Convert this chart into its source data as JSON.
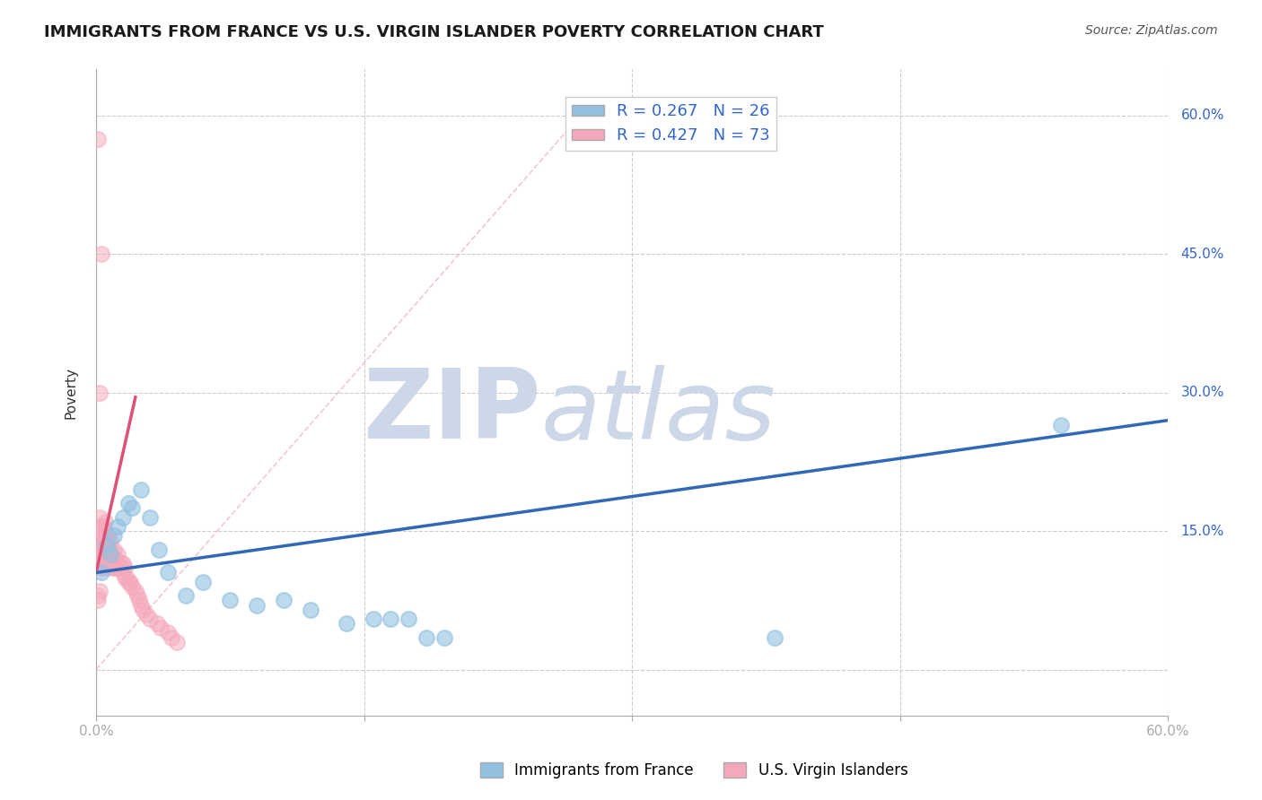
{
  "title": "IMMIGRANTS FROM FRANCE VS U.S. VIRGIN ISLANDER POVERTY CORRELATION CHART",
  "source": "Source: ZipAtlas.com",
  "ylabel": "Poverty",
  "xlim": [
    0.0,
    0.6
  ],
  "ylim": [
    -0.05,
    0.65
  ],
  "yticks": [
    0.0,
    0.15,
    0.3,
    0.45,
    0.6
  ],
  "ytick_labels": [
    "",
    "15.0%",
    "30.0%",
    "45.0%",
    "60.0%"
  ],
  "xticks": [
    0.0,
    0.15,
    0.3,
    0.45,
    0.6
  ],
  "xtick_labels": [
    "0.0%",
    "",
    "",
    "",
    "60.0%"
  ],
  "blue_R": 0.267,
  "blue_N": 26,
  "pink_R": 0.427,
  "pink_N": 73,
  "legend_label_blue": "Immigrants from France",
  "legend_label_pink": "U.S. Virgin Islanders",
  "blue_color": "#92c0e0",
  "pink_color": "#f5a8bb",
  "trendline_blue_color": "#3068b8",
  "trendline_pink_color": "#e05075",
  "ref_line_color": "#f0b8c8",
  "background_color": "#ffffff",
  "grid_color": "#cccccc",
  "watermark_color": "#ccd8e8",
  "title_fontsize": 13,
  "axis_label_fontsize": 11,
  "tick_label_fontsize": 11,
  "legend_fontsize": 13,
  "source_fontsize": 10,
  "blue_x": [
    0.003,
    0.006,
    0.008,
    0.01,
    0.012,
    0.015,
    0.018,
    0.02,
    0.025,
    0.03,
    0.035,
    0.04,
    0.05,
    0.06,
    0.075,
    0.09,
    0.105,
    0.12,
    0.14,
    0.155,
    0.165,
    0.175,
    0.185,
    0.195,
    0.38,
    0.54
  ],
  "blue_y": [
    0.105,
    0.135,
    0.125,
    0.145,
    0.155,
    0.165,
    0.18,
    0.175,
    0.195,
    0.165,
    0.13,
    0.105,
    0.08,
    0.095,
    0.075,
    0.07,
    0.075,
    0.065,
    0.05,
    0.055,
    0.055,
    0.055,
    0.035,
    0.035,
    0.035,
    0.265
  ],
  "pink_x": [
    0.001,
    0.001,
    0.001,
    0.002,
    0.002,
    0.002,
    0.002,
    0.002,
    0.003,
    0.003,
    0.003,
    0.003,
    0.003,
    0.004,
    0.004,
    0.004,
    0.004,
    0.004,
    0.005,
    0.005,
    0.005,
    0.005,
    0.005,
    0.005,
    0.006,
    0.006,
    0.006,
    0.006,
    0.007,
    0.007,
    0.007,
    0.007,
    0.008,
    0.008,
    0.008,
    0.008,
    0.009,
    0.009,
    0.01,
    0.01,
    0.01,
    0.011,
    0.011,
    0.012,
    0.012,
    0.013,
    0.014,
    0.015,
    0.015,
    0.016,
    0.016,
    0.017,
    0.018,
    0.019,
    0.02,
    0.022,
    0.023,
    0.024,
    0.025,
    0.026,
    0.028,
    0.03,
    0.034,
    0.036,
    0.04,
    0.042,
    0.045,
    0.002,
    0.003,
    0.001,
    0.001,
    0.002,
    0.001
  ],
  "pink_y": [
    0.125,
    0.145,
    0.135,
    0.12,
    0.13,
    0.14,
    0.155,
    0.165,
    0.11,
    0.12,
    0.13,
    0.14,
    0.155,
    0.115,
    0.125,
    0.135,
    0.145,
    0.155,
    0.11,
    0.12,
    0.13,
    0.14,
    0.15,
    0.16,
    0.115,
    0.125,
    0.135,
    0.145,
    0.115,
    0.12,
    0.13,
    0.14,
    0.115,
    0.12,
    0.13,
    0.14,
    0.11,
    0.12,
    0.11,
    0.12,
    0.13,
    0.11,
    0.12,
    0.115,
    0.125,
    0.11,
    0.115,
    0.105,
    0.115,
    0.1,
    0.11,
    0.1,
    0.095,
    0.095,
    0.09,
    0.085,
    0.08,
    0.075,
    0.07,
    0.065,
    0.06,
    0.055,
    0.05,
    0.045,
    0.04,
    0.035,
    0.03,
    0.3,
    0.45,
    0.575,
    0.08,
    0.085,
    0.075
  ],
  "blue_trend_x0": 0.0,
  "blue_trend_y0": 0.105,
  "blue_trend_x1": 0.6,
  "blue_trend_y1": 0.27,
  "pink_trend_x0": 0.0,
  "pink_trend_y0": 0.105,
  "pink_trend_x1": 0.022,
  "pink_trend_y1": 0.295,
  "ref_line_x0": 0.0,
  "ref_line_y0": 0.0,
  "ref_line_x1": 0.28,
  "ref_line_y1": 0.62
}
